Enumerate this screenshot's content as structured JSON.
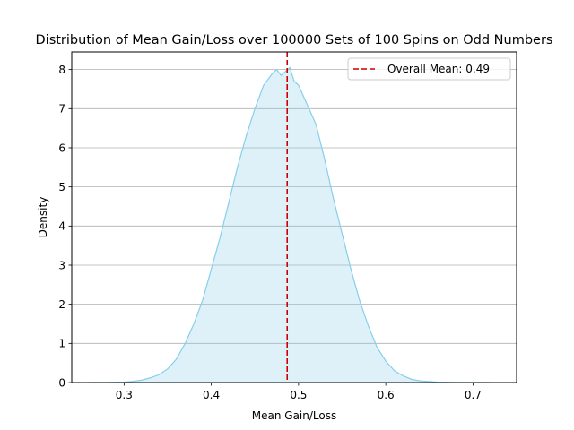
{
  "chart_data": {
    "type": "area",
    "title": "Distribution of Mean Gain/Loss over 100000 Sets of 100 Spins on Odd Numbers",
    "xlabel": "Mean Gain/Loss",
    "ylabel": "Density",
    "xlim": [
      0.24,
      0.75
    ],
    "ylim": [
      0,
      8.45
    ],
    "xticks": [
      0.3,
      0.4,
      0.5,
      0.6,
      0.7
    ],
    "yticks": [
      0,
      1,
      2,
      3,
      4,
      5,
      6,
      7,
      8
    ],
    "grid": "y",
    "legend_position": "upper right",
    "series": [
      {
        "kind": "density",
        "line_color": "#87ceeb",
        "fill_color": "#87ceeb",
        "x": [
          0.26,
          0.28,
          0.3,
          0.31,
          0.32,
          0.33,
          0.34,
          0.35,
          0.36,
          0.37,
          0.38,
          0.39,
          0.4,
          0.41,
          0.42,
          0.43,
          0.44,
          0.45,
          0.46,
          0.47,
          0.475,
          0.48,
          0.49,
          0.495,
          0.5,
          0.51,
          0.52,
          0.53,
          0.54,
          0.55,
          0.56,
          0.57,
          0.58,
          0.59,
          0.6,
          0.61,
          0.62,
          0.63,
          0.64,
          0.66,
          0.68,
          0.7,
          0.72
        ],
        "y": [
          0.0,
          0.0,
          0.01,
          0.03,
          0.06,
          0.12,
          0.2,
          0.35,
          0.6,
          1.0,
          1.5,
          2.1,
          2.9,
          3.7,
          4.6,
          5.5,
          6.3,
          7.0,
          7.6,
          7.9,
          8.0,
          7.85,
          8.05,
          7.7,
          7.6,
          7.1,
          6.6,
          5.7,
          4.7,
          3.8,
          2.9,
          2.1,
          1.45,
          0.9,
          0.55,
          0.3,
          0.17,
          0.08,
          0.04,
          0.01,
          0.0,
          0.0,
          0.0
        ]
      },
      {
        "kind": "vline",
        "name": "Overall Mean: 0.49",
        "x": 0.487,
        "color": "#cc0000",
        "style": "dashed"
      }
    ]
  }
}
